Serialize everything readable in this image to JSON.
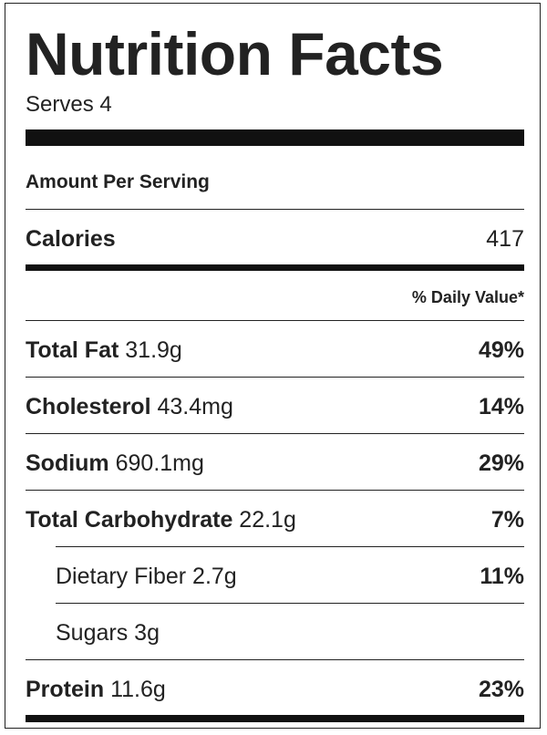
{
  "title": "Nutrition Facts",
  "serves": "Serves 4",
  "amount_per_serving": "Amount Per Serving",
  "calories": {
    "label": "Calories",
    "value": "417"
  },
  "daily_value_header": "% Daily Value*",
  "nutrients": [
    {
      "name": "Total Fat",
      "amount": "31.9g",
      "dv": "49%"
    },
    {
      "name": "Cholesterol",
      "amount": "43.4mg",
      "dv": "14%"
    },
    {
      "name": "Sodium",
      "amount": "690.1mg",
      "dv": "29%"
    },
    {
      "name": "Total Carbohydrate",
      "amount": "22.1g",
      "dv": "7%"
    },
    {
      "name": "Dietary Fiber",
      "amount": "2.7g",
      "dv": "11%"
    },
    {
      "name": "Sugars",
      "amount": "3g",
      "dv": ""
    },
    {
      "name": "Protein",
      "amount": "11.6g",
      "dv": "23%"
    }
  ]
}
